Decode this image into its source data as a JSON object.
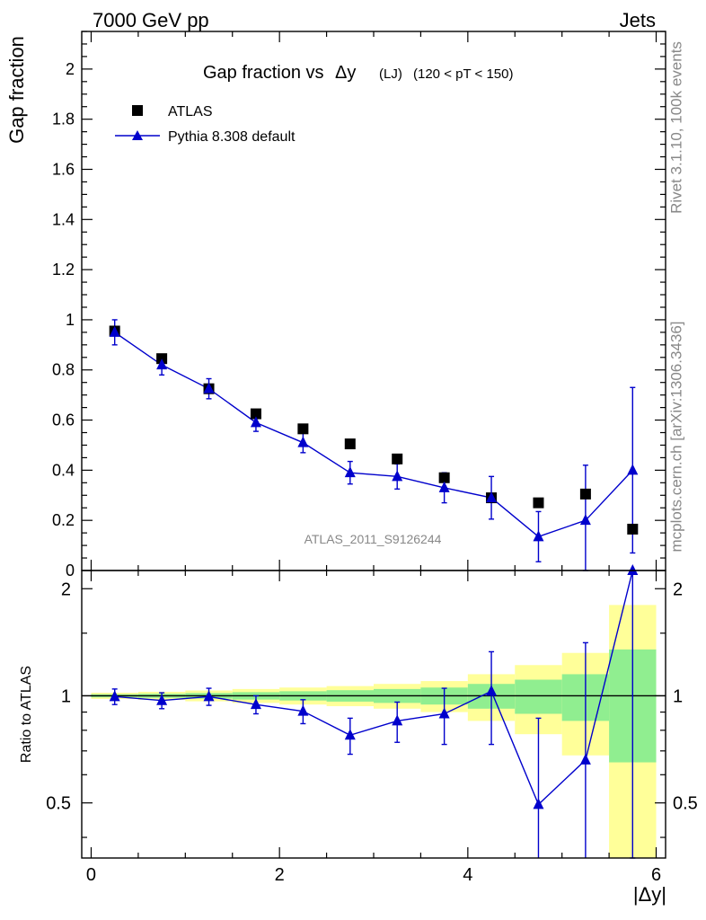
{
  "header": {
    "left": "7000 GeV pp",
    "right": "Jets",
    "side_top": "Rivet 3.1.10,  100k events",
    "side_bottom": "mcplots.cern.ch [arXiv:1306.3436]"
  },
  "colors": {
    "data": "#000000",
    "mc": "#0000cc",
    "band_inner": "#90ee90",
    "band_outer": "#ffff99"
  },
  "chart_data": [
    {
      "type": "scatter",
      "title_main": "Gap fraction vs",
      "title_var": "Δy",
      "title_tag": "(LJ)",
      "title_cut": "(120 < pT < 150)",
      "ylabel": "Gap fraction",
      "xlim": [
        -0.1,
        6.1
      ],
      "ylim": [
        0,
        2.15
      ],
      "yticks": [
        "0",
        "0.2",
        "0.4",
        "0.6",
        "0.8",
        "1",
        "1.2",
        "1.4",
        "1.6",
        "1.8",
        "2"
      ],
      "watermark": "ATLAS_2011_S9126244",
      "legend_position": "top-left",
      "x": [
        0.25,
        0.75,
        1.25,
        1.75,
        2.25,
        2.75,
        3.25,
        3.75,
        4.25,
        4.75,
        5.25,
        5.75
      ],
      "series": [
        {
          "name": "ATLAS",
          "marker": "square",
          "values": [
            0.955,
            0.845,
            0.725,
            0.625,
            0.565,
            0.505,
            0.445,
            0.37,
            0.29,
            0.27,
            0.305,
            0.165
          ]
        },
        {
          "name": "Pythia 8.308 default",
          "marker": "triangle",
          "values": [
            0.95,
            0.82,
            0.725,
            0.59,
            0.51,
            0.39,
            0.375,
            0.33,
            0.29,
            0.135,
            0.2,
            0.4
          ],
          "err": [
            0.05,
            0.04,
            0.04,
            0.035,
            0.04,
            0.045,
            0.05,
            0.06,
            0.085,
            0.1,
            0.22,
            0.33
          ]
        }
      ]
    },
    {
      "type": "line",
      "ylabel": "Ratio to ATLAS",
      "xlabel": "|Δy|",
      "xlim": [
        -0.1,
        6.1
      ],
      "ylim": [
        0.35,
        2.25
      ],
      "log_y": true,
      "xticks": [
        "0",
        "2",
        "4",
        "6"
      ],
      "yticks": [
        "0.5",
        "1",
        "2"
      ],
      "x": [
        0.25,
        0.75,
        1.25,
        1.75,
        2.25,
        2.75,
        3.25,
        3.75,
        4.25,
        4.75,
        5.25,
        5.75
      ],
      "bins": [
        0,
        0.5,
        1,
        1.5,
        2,
        2.5,
        3,
        3.5,
        4,
        4.5,
        5,
        5.5,
        6
      ],
      "band_inner": [
        0.01,
        0.013,
        0.018,
        0.024,
        0.03,
        0.037,
        0.045,
        0.055,
        0.08,
        0.11,
        0.15,
        0.35
      ],
      "band_outer": [
        0.02,
        0.026,
        0.035,
        0.045,
        0.055,
        0.065,
        0.08,
        0.1,
        0.15,
        0.22,
        0.32,
        0.8
      ],
      "series": [
        {
          "name": "Pythia 8.308 default",
          "values": [
            0.995,
            0.97,
            0.995,
            0.945,
            0.905,
            0.775,
            0.85,
            0.89,
            1.03,
            0.495,
            0.66,
            2.35
          ],
          "err": [
            0.05,
            0.05,
            0.055,
            0.055,
            0.07,
            0.09,
            0.11,
            0.16,
            0.3,
            0.37,
            0.75,
            2.0
          ]
        }
      ]
    }
  ]
}
